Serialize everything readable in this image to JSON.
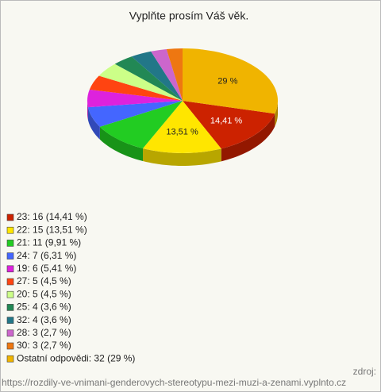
{
  "chart_data": {
    "type": "pie",
    "title": "Vyplňte prosím Váš věk.",
    "categories": [
      "23: 16 (14,41 %)",
      "22: 15 (13,51 %)",
      "21: 11 (9,91 %)",
      "24: 7 (6,31 %)",
      "19: 6 (5,41 %)",
      "27: 5 (4,5 %)",
      "20: 5 (4,5 %)",
      "25: 4 (3,6 %)",
      "32: 4 (3,6 %)",
      "28: 3 (2,7 %)",
      "30: 3 (2,7 %)",
      "Ostatní odpovědi: 32 (29 %)"
    ],
    "values": [
      14.41,
      13.51,
      9.91,
      6.31,
      5.41,
      4.5,
      4.5,
      3.6,
      3.6,
      2.7,
      2.7,
      29
    ],
    "value_labels": [
      "14,41 %",
      "13,51 %",
      null,
      null,
      null,
      null,
      null,
      null,
      null,
      null,
      null,
      "29 %"
    ],
    "colors": [
      "#cc2200",
      "#ffe600",
      "#22cc22",
      "#4466ff",
      "#dd22dd",
      "#ff4411",
      "#ccff88",
      "#228855",
      "#227788",
      "#cc66cc",
      "#ee7711",
      "#f0b400"
    ],
    "source_label": "zdroj:",
    "source": "https://rozdily-ve-vnimani-genderovych-stereotypu-mezi-muzi-a-zenami.vyplnto.cz"
  }
}
